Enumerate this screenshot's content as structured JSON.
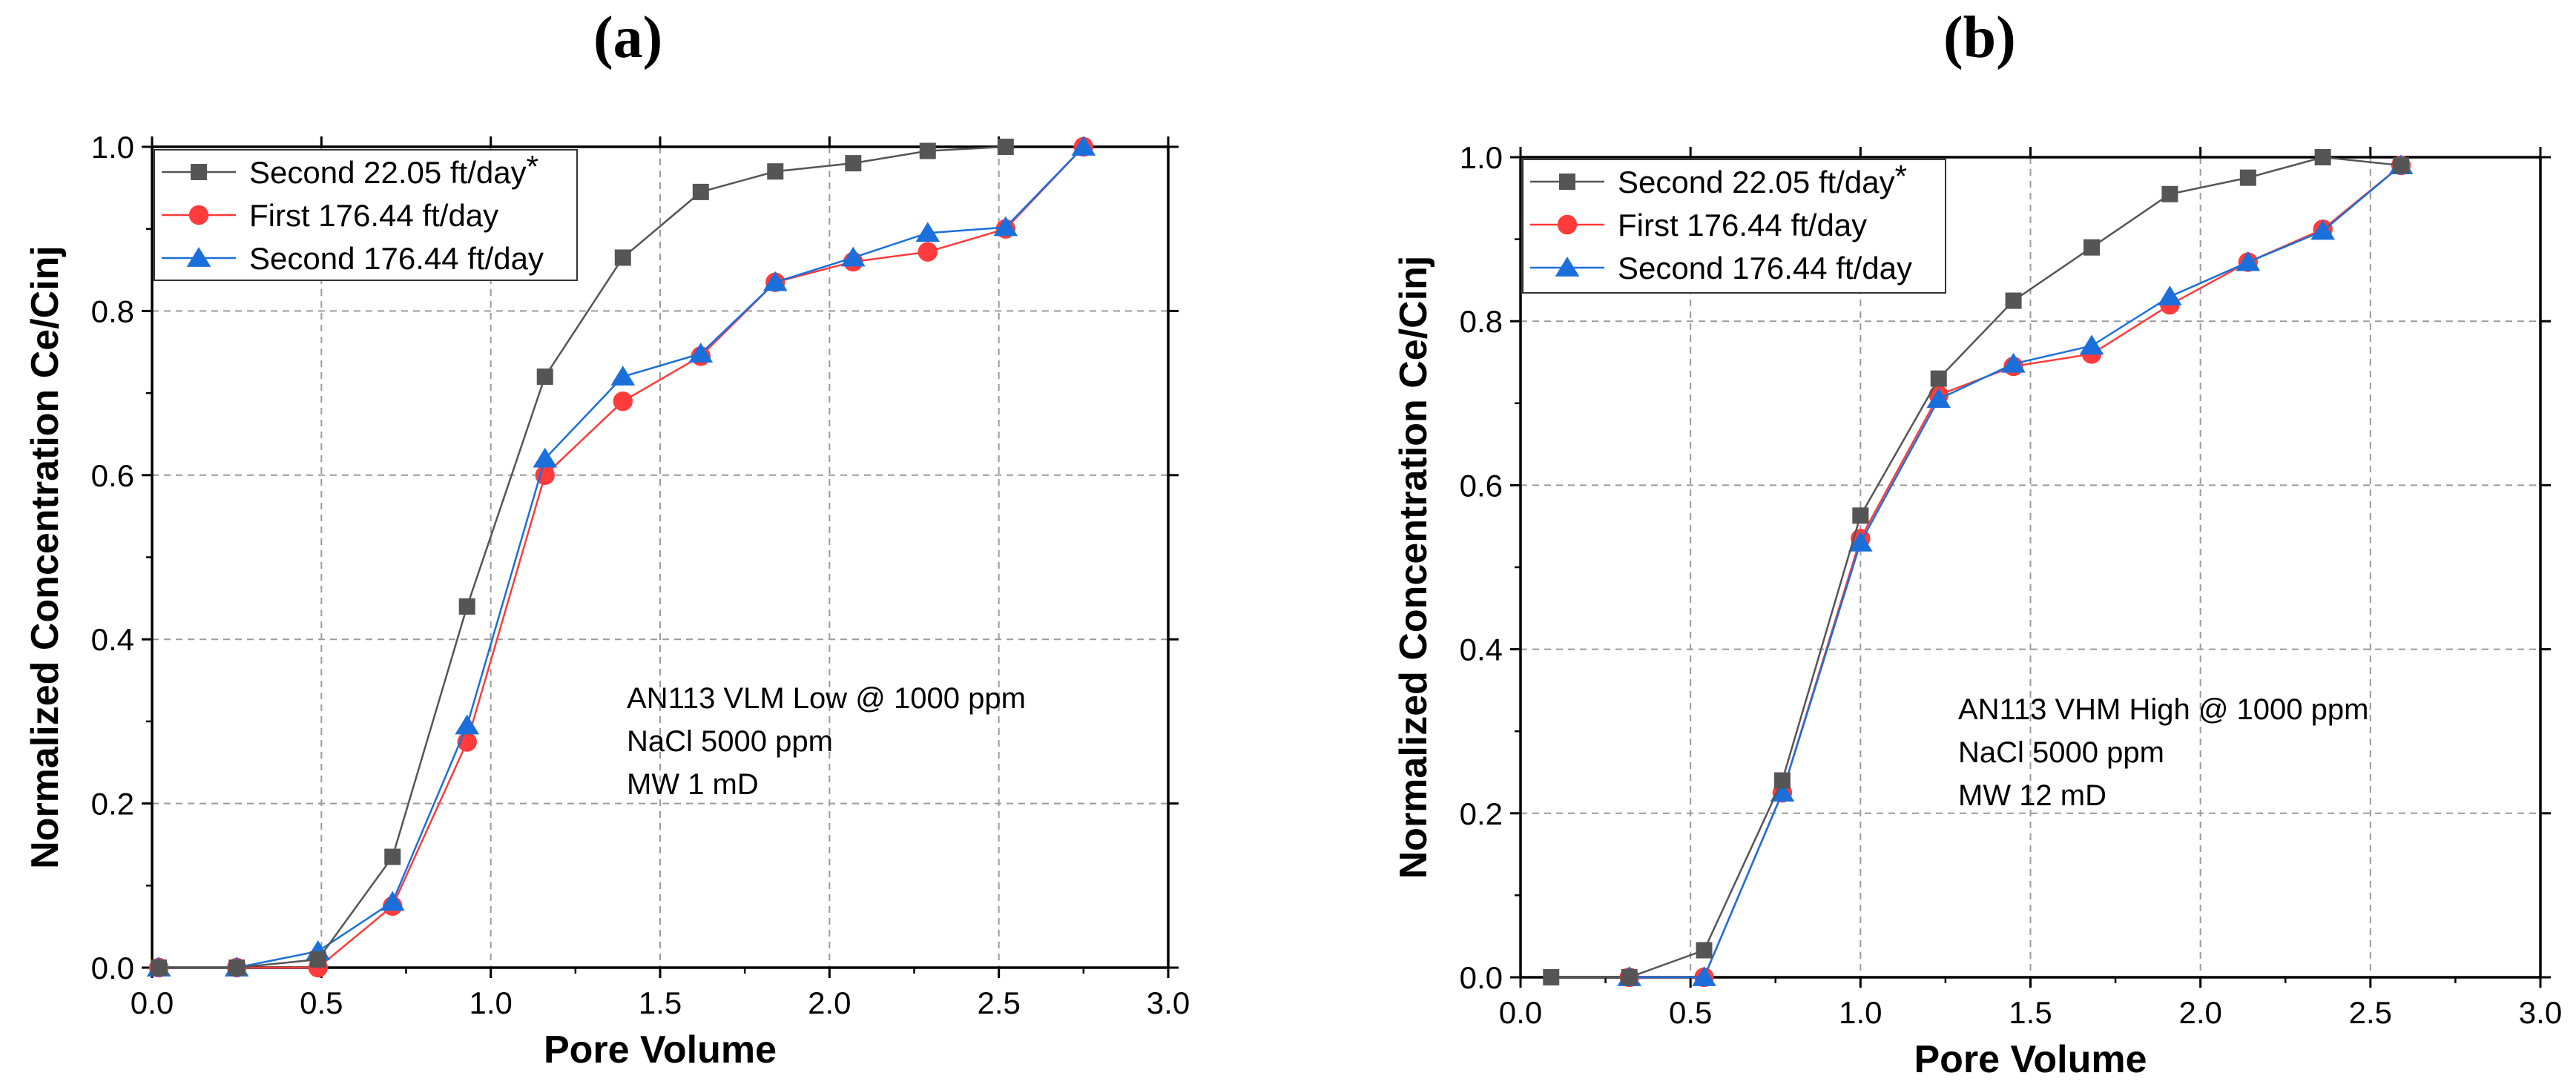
{
  "panel_labels": [
    "(a)",
    "(b)"
  ],
  "colors": {
    "grid": "#9a9a9a",
    "axis": "#000000"
  },
  "chart_data": [
    {
      "type": "line",
      "panel": "(a)",
      "xlabel": "Pore Volume",
      "ylabel": "Normalized Concentration Ce/Cinj",
      "xlim": [
        0.0,
        3.0
      ],
      "ylim": [
        0.0,
        1.0
      ],
      "xticks": [
        0.0,
        0.5,
        1.0,
        1.5,
        2.0,
        2.5,
        3.0
      ],
      "yticks": [
        0.0,
        0.2,
        0.4,
        0.6,
        0.8,
        1.0
      ],
      "grid": true,
      "legend_position": "top-left",
      "annotation": [
        "AN113 VLM Low @ 1000 ppm",
        "NaCl 5000 ppm",
        "MW 1 mD"
      ],
      "series": [
        {
          "name": "Second 22.05 ft/day",
          "name_suffix": "*",
          "color": "#555555",
          "marker": "square",
          "x": [
            0.02,
            0.25,
            0.49,
            0.71,
            0.93,
            1.16,
            1.39,
            1.62,
            1.84,
            2.07,
            2.29,
            2.52
          ],
          "y": [
            0.0,
            0.0,
            0.01,
            0.135,
            0.44,
            0.72,
            0.865,
            0.945,
            0.97,
            0.98,
            0.995,
            1.0
          ]
        },
        {
          "name": "First 176.44 ft/day",
          "name_suffix": "",
          "color": "#ff3b3b",
          "marker": "circle",
          "x": [
            0.02,
            0.25,
            0.49,
            0.71,
            0.93,
            1.16,
            1.39,
            1.62,
            1.84,
            2.07,
            2.29,
            2.52,
            2.75
          ],
          "y": [
            0.0,
            0.0,
            0.0,
            0.075,
            0.275,
            0.6,
            0.69,
            0.745,
            0.835,
            0.86,
            0.872,
            0.9,
            1.0
          ]
        },
        {
          "name": "Second 176.44 ft/day",
          "name_suffix": "",
          "color": "#1a6fdb",
          "marker": "triangle",
          "x": [
            0.02,
            0.25,
            0.49,
            0.71,
            0.93,
            1.16,
            1.39,
            1.62,
            1.84,
            2.07,
            2.29,
            2.52,
            2.75
          ],
          "y": [
            0.0,
            0.0,
            0.02,
            0.08,
            0.295,
            0.62,
            0.72,
            0.748,
            0.835,
            0.865,
            0.895,
            0.902,
            1.0
          ]
        }
      ]
    },
    {
      "type": "line",
      "panel": "(b)",
      "xlabel": "Pore Volume",
      "ylabel": "Normalized Concentration Ce/Cinj",
      "xlim": [
        0.0,
        3.0
      ],
      "ylim": [
        0.0,
        1.0
      ],
      "xticks": [
        0.0,
        0.5,
        1.0,
        1.5,
        2.0,
        2.5,
        3.0
      ],
      "yticks": [
        0.0,
        0.2,
        0.4,
        0.6,
        0.8,
        1.0
      ],
      "grid": true,
      "legend_position": "top-left",
      "annotation": [
        "AN113 VHM High @ 1000 ppm",
        "NaCl 5000 ppm",
        "MW 12 mD"
      ],
      "series": [
        {
          "name": "Second 22.05 ft/day",
          "name_suffix": "*",
          "color": "#555555",
          "marker": "square",
          "x": [
            0.09,
            0.32,
            0.54,
            0.77,
            1.0,
            1.23,
            1.45,
            1.68,
            1.91,
            2.14,
            2.36,
            2.59
          ],
          "y": [
            0.0,
            0.0,
            0.033,
            0.24,
            0.563,
            0.73,
            0.825,
            0.89,
            0.955,
            0.975,
            1.0,
            0.99
          ]
        },
        {
          "name": "First 176.44 ft/day",
          "name_suffix": "",
          "color": "#ff3b3b",
          "marker": "circle",
          "x": [
            0.32,
            0.54,
            0.77,
            1.0,
            1.23,
            1.45,
            1.68,
            1.91,
            2.14,
            2.36,
            2.59
          ],
          "y": [
            0.0,
            0.0,
            0.225,
            0.535,
            0.71,
            0.745,
            0.76,
            0.82,
            0.872,
            0.912,
            0.99
          ]
        },
        {
          "name": "Second 176.44 ft/day",
          "name_suffix": "",
          "color": "#1a6fdb",
          "marker": "triangle",
          "x": [
            0.32,
            0.54,
            0.77,
            1.0,
            1.23,
            1.45,
            1.68,
            1.91,
            2.14,
            2.36,
            2.59
          ],
          "y": [
            0.0,
            0.0,
            0.225,
            0.53,
            0.705,
            0.748,
            0.77,
            0.83,
            0.872,
            0.91,
            0.99
          ]
        }
      ]
    }
  ]
}
